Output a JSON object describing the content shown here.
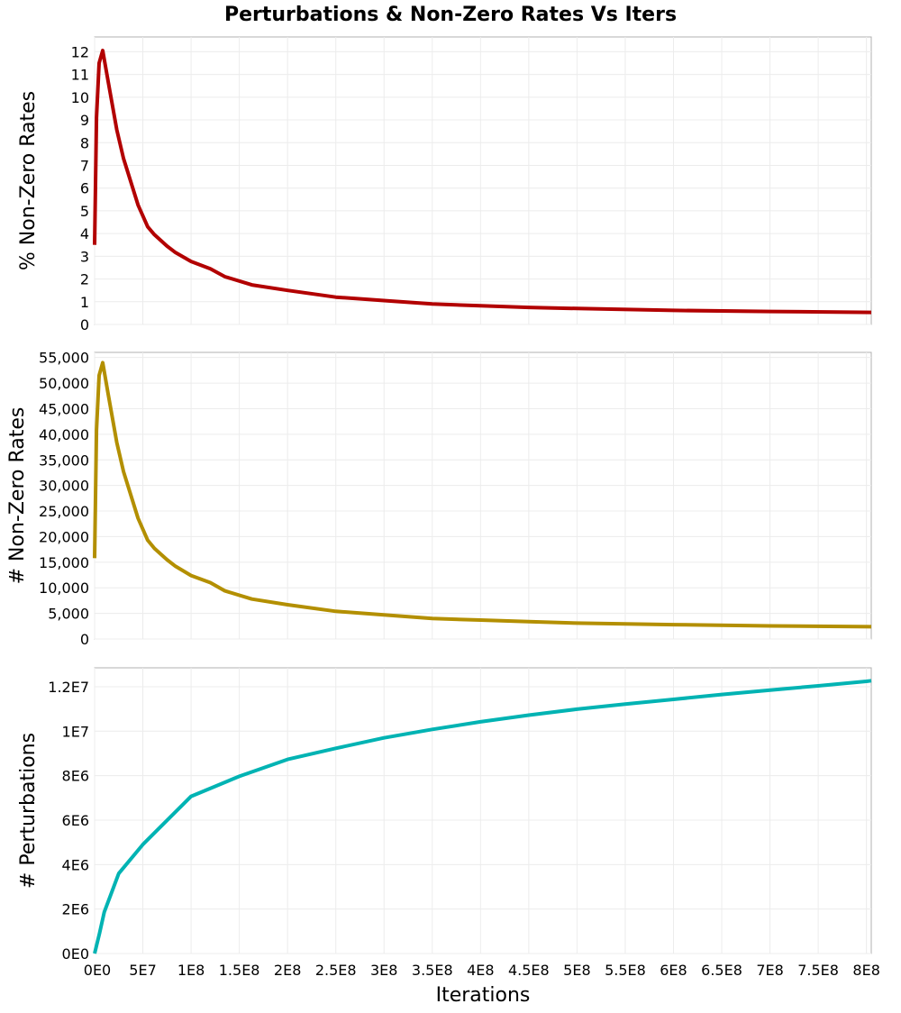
{
  "chart_data": {
    "type": "line",
    "title": "Perturbations & Non-Zero Rates Vs Iters",
    "xlabel": "Iterations",
    "xlim": [
      0,
      805000000
    ],
    "xticks": [
      0,
      50000000,
      100000000,
      150000000,
      200000000,
      250000000,
      300000000,
      350000000,
      400000000,
      450000000,
      500000000,
      550000000,
      600000000,
      650000000,
      700000000,
      750000000,
      800000000
    ],
    "xtick_labels": [
      "0E0",
      "5E7",
      "1E8",
      "1.5E8",
      "2E8",
      "2.5E8",
      "3E8",
      "3.5E8",
      "4E8",
      "4.5E8",
      "5E8",
      "5.5E8",
      "6E8",
      "6.5E8",
      "7E8",
      "7.5E8",
      "8E8"
    ],
    "grid": true,
    "panels": [
      {
        "ylabel": "% Non-Zero Rates",
        "color": "#b20000",
        "ylim": [
          0,
          12.65
        ],
        "yticks": [
          0,
          1,
          2,
          3,
          4,
          5,
          6,
          7,
          8,
          9,
          10,
          11,
          12
        ],
        "ytick_labels": [
          "0",
          "1",
          "2",
          "3",
          "4",
          "5",
          "6",
          "7",
          "8",
          "9",
          "10",
          "11",
          "12"
        ],
        "x": [
          0,
          2000000,
          4700000,
          8400000,
          14000000,
          23000000,
          30000000,
          45000000,
          55000000,
          62000000,
          75000000,
          84000000,
          100000000,
          120000000,
          135000000,
          163000000,
          200000000,
          250000000,
          300000000,
          350000000,
          400000000,
          450000000,
          500000000,
          600000000,
          700000000,
          805000000
        ],
        "y": [
          3.5,
          9.1,
          11.5,
          12.05,
          10.7,
          8.57,
          7.3,
          5.26,
          4.3,
          3.95,
          3.45,
          3.16,
          2.77,
          2.45,
          2.1,
          1.74,
          1.5,
          1.2,
          1.05,
          0.9,
          0.82,
          0.75,
          0.7,
          0.62,
          0.57,
          0.53
        ]
      },
      {
        "ylabel": "# Non-Zero Rates",
        "color": "#b38f00",
        "ylim": [
          0,
          56000
        ],
        "yticks": [
          0,
          5000,
          10000,
          15000,
          20000,
          25000,
          30000,
          35000,
          40000,
          45000,
          50000,
          55000
        ],
        "ytick_labels": [
          "0",
          "5,000",
          "10,000",
          "15,000",
          "20,000",
          "25,000",
          "30,000",
          "35,000",
          "40,000",
          "45,000",
          "50,000",
          "55,000"
        ],
        "x": [
          0,
          2000000,
          4700000,
          8400000,
          14000000,
          23000000,
          30000000,
          45000000,
          55000000,
          62000000,
          75000000,
          84000000,
          100000000,
          120000000,
          135000000,
          163000000,
          200000000,
          250000000,
          300000000,
          350000000,
          400000000,
          450000000,
          500000000,
          600000000,
          700000000,
          805000000
        ],
        "y": [
          15800,
          40800,
          51500,
          54000,
          47900,
          38400,
          32700,
          23600,
          19300,
          17700,
          15500,
          14200,
          12400,
          11000,
          9400,
          7800,
          6700,
          5400,
          4700,
          4000,
          3700,
          3400,
          3100,
          2800,
          2550,
          2400
        ]
      },
      {
        "ylabel": "# Perturbations",
        "color": "#00b3b3",
        "ylim": [
          0,
          12850000
        ],
        "yticks": [
          0,
          2000000,
          4000000,
          6000000,
          8000000,
          10000000,
          12000000
        ],
        "ytick_labels": [
          "0E0",
          "2E6",
          "4E6",
          "6E6",
          "8E6",
          "1E7",
          "1.2E7"
        ],
        "x": [
          0,
          5000000,
          10000000,
          25000000,
          50000000,
          100000000,
          150000000,
          200000000,
          250000000,
          300000000,
          350000000,
          400000000,
          450000000,
          500000000,
          550000000,
          600000000,
          650000000,
          700000000,
          750000000,
          800000000,
          805000000
        ],
        "y": [
          0,
          900000,
          1860000,
          3600000,
          4900000,
          7070000,
          7970000,
          8730000,
          9230000,
          9700000,
          10080000,
          10420000,
          10720000,
          10990000,
          11220000,
          11430000,
          11650000,
          11850000,
          12040000,
          12240000,
          12270000
        ]
      }
    ]
  }
}
